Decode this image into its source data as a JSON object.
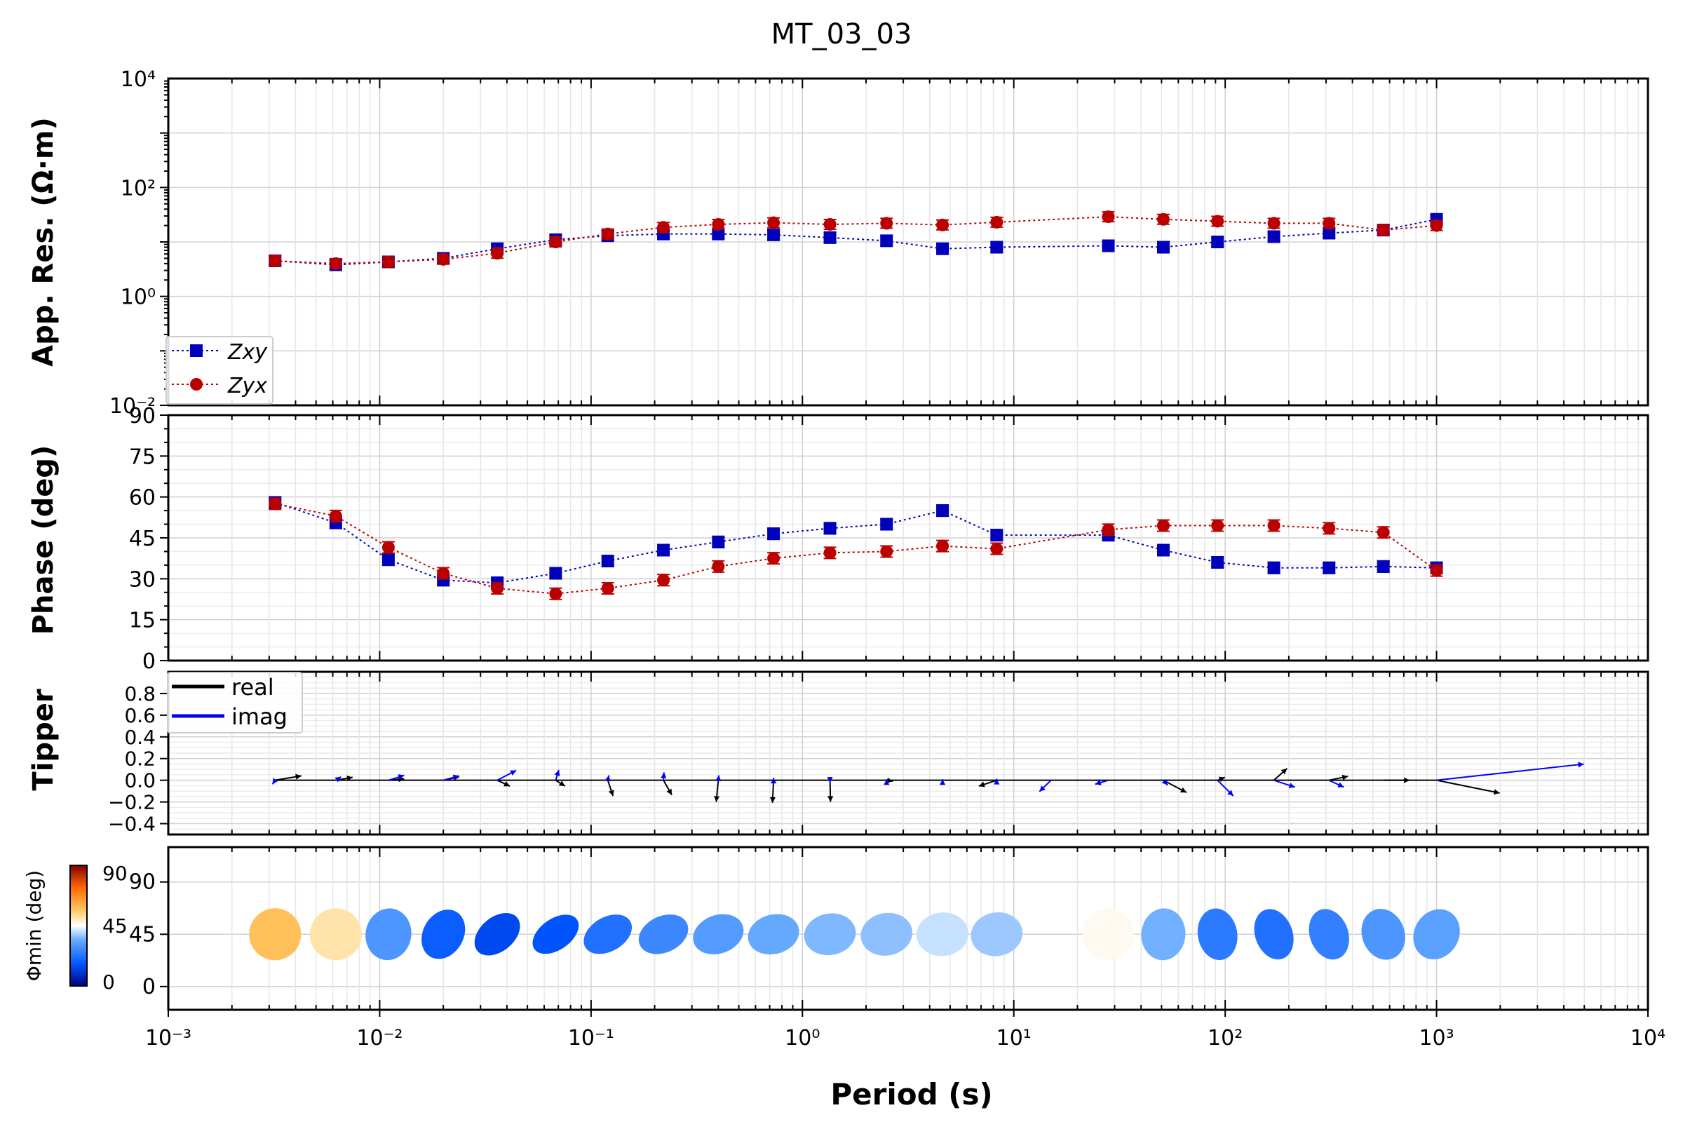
{
  "chart_data": [
    {
      "type": "scatter",
      "panel": "apparent-resistivity",
      "title": "MT_03_03",
      "xlabel": "Period (s)",
      "ylabel": "App. Res. (Ω·m)",
      "xscale": "log",
      "yscale": "log",
      "xlim": [
        0.001,
        10000
      ],
      "ylim": [
        0.01,
        10000
      ],
      "grid": true,
      "legend_placement": "bottom-left",
      "x_tick_labels": [
        "10⁻³",
        "10⁻²",
        "10⁻¹",
        "10⁰",
        "10¹",
        "10²",
        "10³",
        "10⁴"
      ],
      "y_tick_labels": [
        "10⁻²",
        "10⁰",
        "10²",
        "10⁴"
      ],
      "x": [
        0.0032,
        0.0062,
        0.011,
        0.02,
        0.036,
        0.068,
        0.12,
        0.22,
        0.4,
        0.73,
        1.35,
        2.5,
        4.6,
        8.3,
        28,
        51,
        92,
        170,
        310,
        560,
        1000
      ],
      "series": [
        {
          "name": "Zxy",
          "color": "#0000bb",
          "marker": "square",
          "values": [
            4.5,
            3.8,
            4.3,
            5.0,
            7.5,
            11.0,
            13.0,
            14.0,
            14.0,
            13.5,
            12.0,
            10.5,
            7.5,
            8.0,
            8.5,
            8.0,
            10.0,
            12.5,
            14.5,
            16.5,
            26.0
          ]
        },
        {
          "name": "Zyx",
          "color": "#bb0000",
          "marker": "circle",
          "values": [
            4.5,
            4.0,
            4.3,
            4.8,
            6.2,
            10.0,
            14.0,
            18.5,
            21.0,
            22.5,
            21.0,
            22.0,
            20.5,
            23.0,
            29.0,
            26.0,
            24.0,
            22.0,
            22.0,
            16.5,
            20.0
          ]
        }
      ]
    },
    {
      "type": "scatter",
      "panel": "phase",
      "ylabel": "Phase (deg)",
      "xscale": "log",
      "xlim": [
        0.001,
        10000
      ],
      "ylim": [
        0,
        90
      ],
      "y_ticks": [
        0,
        15,
        30,
        45,
        60,
        75,
        90
      ],
      "x": [
        0.0032,
        0.0062,
        0.011,
        0.02,
        0.036,
        0.068,
        0.12,
        0.22,
        0.4,
        0.73,
        1.35,
        2.5,
        4.6,
        8.3,
        28,
        51,
        92,
        170,
        310,
        560,
        1000
      ],
      "series": [
        {
          "name": "Zxy",
          "color": "#0000bb",
          "marker": "square",
          "values": [
            58,
            50.5,
            37,
            29.5,
            28.5,
            32,
            36.5,
            40.5,
            43.5,
            46.5,
            48.5,
            50,
            55,
            46,
            46,
            40.5,
            36,
            34,
            34,
            34.5,
            34
          ]
        },
        {
          "name": "Zyx",
          "color": "#bb0000",
          "marker": "circle",
          "values": [
            57.5,
            53,
            41.5,
            32,
            26.5,
            24.5,
            26.5,
            29.5,
            34.5,
            37.5,
            39.5,
            40,
            42,
            41,
            48,
            49.5,
            49.5,
            49.5,
            48.5,
            47,
            33
          ]
        }
      ]
    },
    {
      "type": "line",
      "panel": "tipper",
      "ylabel": "Tipper",
      "xscale": "log",
      "xlim": [
        0.001,
        10000
      ],
      "ylim": [
        -0.5,
        1.0
      ],
      "y_tick_labels": [
        "−0.4",
        "−0.2",
        "0.0",
        "0.2",
        "0.4",
        "0.6",
        "0.8"
      ],
      "legend": [
        {
          "name": "real",
          "color": "#000000"
        },
        {
          "name": "imag",
          "color": "#0000ff"
        }
      ],
      "x": [
        0.0032,
        0.0062,
        0.011,
        0.02,
        0.036,
        0.068,
        0.12,
        0.22,
        0.4,
        0.73,
        1.35,
        2.5,
        4.6,
        8.3,
        15,
        28,
        51,
        92,
        170,
        310,
        560,
        1000
      ],
      "real_arrows": [
        [
          0.5,
          0.09
        ],
        [
          0.32,
          0.06
        ],
        [
          0.3,
          0.03
        ],
        [
          0.3,
          0.07
        ],
        [
          0.24,
          -0.12
        ],
        [
          0.18,
          -0.12
        ],
        [
          0.1,
          -0.32
        ],
        [
          0.16,
          -0.3
        ],
        [
          -0.04,
          -0.44
        ],
        [
          -0.02,
          -0.46
        ],
        [
          0.01,
          -0.44
        ],
        [
          0.12,
          -0.02
        ],
        [
          0,
          0
        ],
        [
          -0.34,
          -0.12
        ],
        [
          0,
          0
        ],
        [
          0,
          0
        ],
        [
          0.44,
          -0.25
        ],
        [
          0.14,
          0.06
        ],
        [
          0.25,
          0.24
        ],
        [
          0.36,
          0.08
        ],
        [
          0.5,
          0
        ],
        [
          1.2,
          -0.26
        ]
      ],
      "imag_arrows": [
        [
          -0.05,
          -0.08
        ],
        [
          0.1,
          0.07
        ],
        [
          0.3,
          0.1
        ],
        [
          0.3,
          0.09
        ],
        [
          0.36,
          0.2
        ],
        [
          0.06,
          0.21
        ],
        [
          0.02,
          0.1
        ],
        [
          0.01,
          0.16
        ],
        [
          0.01,
          0.1
        ],
        [
          0,
          0.05
        ],
        [
          0,
          -0.05
        ],
        [
          0,
          0.02
        ],
        [
          0,
          0.02
        ],
        [
          0,
          0.03
        ],
        [
          -0.22,
          -0.23
        ],
        [
          -0.25,
          -0.08
        ],
        [
          0.08,
          -0.1
        ],
        [
          0.3,
          -0.32
        ],
        [
          0.4,
          -0.14
        ],
        [
          0.28,
          -0.14
        ],
        [
          0,
          0
        ],
        [
          2.8,
          0.33
        ]
      ]
    },
    {
      "type": "scatter",
      "panel": "phase-tensor-ellipses",
      "ylabel": "Φmin (deg)",
      "xscale": "log",
      "xlim": [
        0.001,
        10000
      ],
      "y_tick_labels": [
        "0",
        "45",
        "90"
      ],
      "colorbar_ticks": [
        "0",
        "45",
        "90"
      ],
      "colorbar_range": [
        0,
        90
      ],
      "colorbar_label": "Φmin (deg)",
      "x": [
        0.0032,
        0.0062,
        0.011,
        0.02,
        0.036,
        0.068,
        0.12,
        0.22,
        0.4,
        0.73,
        1.35,
        2.5,
        4.6,
        8.3,
        28,
        51,
        92,
        170,
        310,
        560,
        1000
      ],
      "phimin": [
        58,
        51,
        30,
        18,
        14,
        16,
        22,
        27,
        31,
        34,
        36,
        37,
        41,
        38,
        46,
        35,
        24,
        22,
        25,
        30,
        32
      ],
      "eccentricity": [
        1.0,
        1.0,
        0.88,
        0.78,
        0.66,
        0.6,
        0.66,
        0.7,
        0.74,
        0.76,
        0.8,
        0.82,
        0.84,
        0.84,
        1.0,
        0.85,
        0.76,
        0.72,
        0.74,
        0.82,
        0.86
      ],
      "orientation_deg": [
        0,
        0,
        80,
        60,
        40,
        35,
        30,
        25,
        20,
        15,
        10,
        10,
        5,
        10,
        0,
        85,
        100,
        110,
        110,
        110,
        60
      ]
    }
  ]
}
